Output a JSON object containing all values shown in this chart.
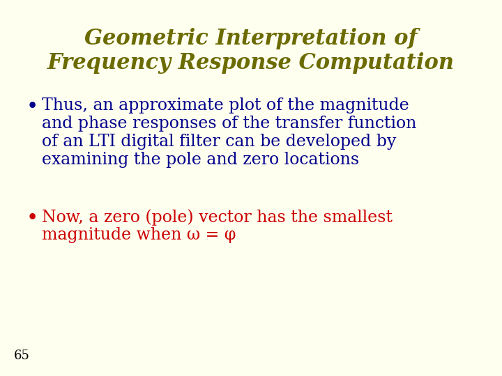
{
  "background_color": "#FFFFF0",
  "title_line1": "Geometric Interpretation of",
  "title_line2": "Frequency Response Computation",
  "title_color": "#6B6B00",
  "title_fontsize": 22,
  "bullet1_lines": [
    "Thus, an approximate plot of the magnitude",
    "and phase responses of the transfer function",
    "of an LTI digital filter can be developed by",
    "examining the pole and zero locations"
  ],
  "bullet1_color": "#00008B",
  "bullet1_fontsize": 17,
  "bullet2_line1": "Now, a zero (pole) vector has the smallest",
  "bullet2_line2": "magnitude when ω = φ",
  "bullet2_color": "#CC0000",
  "bullet2_fontsize": 17,
  "bullet_color": "#00008B",
  "bullet2_bullet_color": "#CC0000",
  "page_number": "65",
  "page_number_color": "#000000",
  "page_number_fontsize": 13
}
